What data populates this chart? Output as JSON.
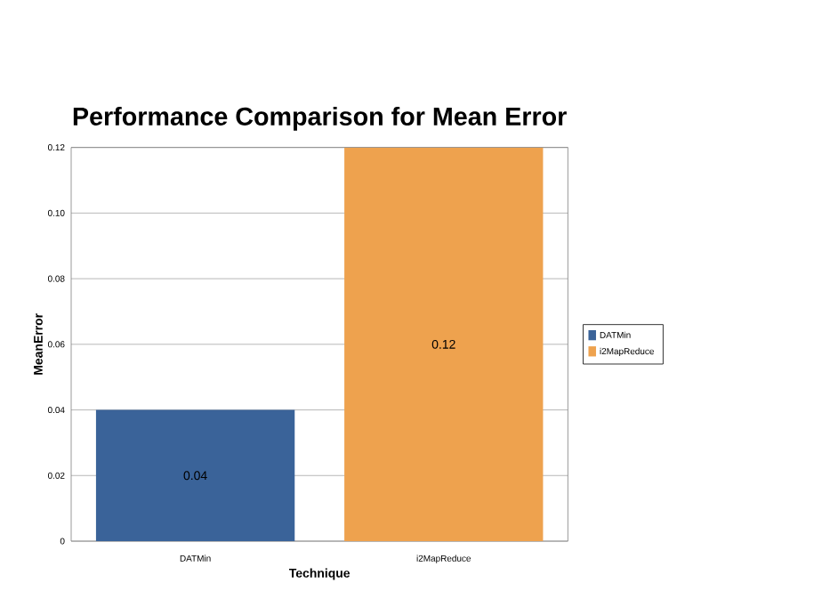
{
  "chart_data": {
    "type": "bar",
    "title": "Performance Comparison for Mean Error",
    "xlabel": "Technique",
    "ylabel": "MeanError",
    "categories": [
      "DATMin",
      "i2MapReduce"
    ],
    "series": [
      {
        "name": "DATMin",
        "color": "#3a6399",
        "values": [
          0.04,
          null
        ]
      },
      {
        "name": "i2MapReduce",
        "color": "#eea24e",
        "values": [
          null,
          0.12
        ]
      }
    ],
    "ylim": [
      0,
      0.12
    ],
    "yticks": [
      0,
      0.02,
      0.04,
      0.06,
      0.08,
      {
        "value": 0.1,
        "label": "0.10"
      },
      0.12
    ],
    "grid": "y",
    "legend": "right",
    "data_labels": true
  }
}
